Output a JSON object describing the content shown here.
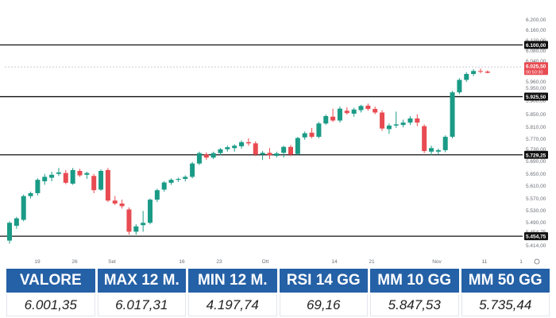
{
  "chart_data": {
    "type": "candlestick",
    "y_range": [
      5380,
      6230
    ],
    "y_ticks": [
      "6.200,00",
      "6.160,00",
      "6.120,00",
      "6.080,00",
      "6.040,00",
      "6.000,00",
      "5.960,00",
      "5.950,00",
      "5.900,00",
      "5.850,00",
      "5.810,00",
      "5.770,00",
      "5.730,00",
      "5.690,00",
      "5.650,00",
      "5.610,00",
      "5.570,00",
      "5.530,00",
      "5.490,00",
      "5.454,75",
      "5.414,00"
    ],
    "x_tick_labels": [
      "19",
      "26",
      "Set",
      "16",
      "23",
      "Ott",
      "14",
      "21",
      "Nov",
      "11",
      "1"
    ],
    "horizontal_levels": [
      {
        "value": 6100.0,
        "label": "6.100,00"
      },
      {
        "value": 5925.5,
        "label": "5.925,50"
      },
      {
        "value": 5729.25,
        "label": "5.729,25"
      },
      {
        "value": 5454.75,
        "label": "5.454,75"
      }
    ],
    "current_price": {
      "value": 6025.5,
      "label": "6.025,50",
      "sublabel": "00:50:30"
    },
    "colors": {
      "up": "#1a9b86",
      "down": "#e84b52",
      "price_tag": "#e84b52",
      "level_line": "#111111",
      "tag_bg": "#111111"
    },
    "candles": [
      {
        "o": 5440,
        "h": 5505,
        "l": 5430,
        "c": 5500
      },
      {
        "o": 5490,
        "h": 5520,
        "l": 5480,
        "c": 5515
      },
      {
        "o": 5510,
        "h": 5595,
        "l": 5505,
        "c": 5590
      },
      {
        "o": 5590,
        "h": 5605,
        "l": 5582,
        "c": 5600
      },
      {
        "o": 5600,
        "h": 5650,
        "l": 5592,
        "c": 5645
      },
      {
        "o": 5640,
        "h": 5665,
        "l": 5628,
        "c": 5655
      },
      {
        "o": 5652,
        "h": 5672,
        "l": 5640,
        "c": 5662
      },
      {
        "o": 5665,
        "h": 5685,
        "l": 5658,
        "c": 5670
      },
      {
        "o": 5668,
        "h": 5678,
        "l": 5630,
        "c": 5635
      },
      {
        "o": 5632,
        "h": 5685,
        "l": 5628,
        "c": 5678
      },
      {
        "o": 5675,
        "h": 5682,
        "l": 5655,
        "c": 5660
      },
      {
        "o": 5662,
        "h": 5672,
        "l": 5648,
        "c": 5668
      },
      {
        "o": 5658,
        "h": 5665,
        "l": 5600,
        "c": 5610
      },
      {
        "o": 5612,
        "h": 5680,
        "l": 5608,
        "c": 5675
      },
      {
        "o": 5678,
        "h": 5685,
        "l": 5570,
        "c": 5575
      },
      {
        "o": 5575,
        "h": 5590,
        "l": 5560,
        "c": 5565
      },
      {
        "o": 5565,
        "h": 5578,
        "l": 5548,
        "c": 5556
      },
      {
        "o": 5545,
        "h": 5552,
        "l": 5460,
        "c": 5470
      },
      {
        "o": 5470,
        "h": 5495,
        "l": 5460,
        "c": 5488
      },
      {
        "o": 5492,
        "h": 5540,
        "l": 5470,
        "c": 5500
      },
      {
        "o": 5500,
        "h": 5582,
        "l": 5495,
        "c": 5578
      },
      {
        "o": 5578,
        "h": 5615,
        "l": 5570,
        "c": 5610
      },
      {
        "o": 5612,
        "h": 5640,
        "l": 5605,
        "c": 5636
      },
      {
        "o": 5635,
        "h": 5650,
        "l": 5628,
        "c": 5645
      },
      {
        "o": 5645,
        "h": 5652,
        "l": 5638,
        "c": 5648
      },
      {
        "o": 5648,
        "h": 5660,
        "l": 5640,
        "c": 5655
      },
      {
        "o": 5655,
        "h": 5705,
        "l": 5650,
        "c": 5700
      },
      {
        "o": 5700,
        "h": 5740,
        "l": 5695,
        "c": 5735
      },
      {
        "o": 5730,
        "h": 5738,
        "l": 5712,
        "c": 5720
      },
      {
        "o": 5720,
        "h": 5740,
        "l": 5715,
        "c": 5735
      },
      {
        "o": 5735,
        "h": 5752,
        "l": 5728,
        "c": 5748
      },
      {
        "o": 5748,
        "h": 5760,
        "l": 5740,
        "c": 5755
      },
      {
        "o": 5752,
        "h": 5765,
        "l": 5740,
        "c": 5760
      },
      {
        "o": 5758,
        "h": 5778,
        "l": 5750,
        "c": 5772
      },
      {
        "o": 5772,
        "h": 5785,
        "l": 5760,
        "c": 5768
      },
      {
        "o": 5768,
        "h": 5775,
        "l": 5725,
        "c": 5730
      },
      {
        "o": 5730,
        "h": 5742,
        "l": 5712,
        "c": 5736
      },
      {
        "o": 5736,
        "h": 5752,
        "l": 5715,
        "c": 5728
      },
      {
        "o": 5726,
        "h": 5740,
        "l": 5720,
        "c": 5734
      },
      {
        "o": 5736,
        "h": 5760,
        "l": 5720,
        "c": 5756
      },
      {
        "o": 5756,
        "h": 5762,
        "l": 5725,
        "c": 5730
      },
      {
        "o": 5732,
        "h": 5790,
        "l": 5728,
        "c": 5786
      },
      {
        "o": 5788,
        "h": 5808,
        "l": 5780,
        "c": 5802
      },
      {
        "o": 5804,
        "h": 5820,
        "l": 5785,
        "c": 5790
      },
      {
        "o": 5790,
        "h": 5840,
        "l": 5785,
        "c": 5835
      },
      {
        "o": 5835,
        "h": 5865,
        "l": 5830,
        "c": 5860
      },
      {
        "o": 5858,
        "h": 5885,
        "l": 5840,
        "c": 5845
      },
      {
        "o": 5845,
        "h": 5892,
        "l": 5838,
        "c": 5885
      },
      {
        "o": 5878,
        "h": 5890,
        "l": 5865,
        "c": 5870
      },
      {
        "o": 5868,
        "h": 5888,
        "l": 5858,
        "c": 5882
      },
      {
        "o": 5880,
        "h": 5898,
        "l": 5872,
        "c": 5894
      },
      {
        "o": 5895,
        "h": 5902,
        "l": 5878,
        "c": 5884
      },
      {
        "o": 5884,
        "h": 5892,
        "l": 5866,
        "c": 5872
      },
      {
        "o": 5872,
        "h": 5880,
        "l": 5810,
        "c": 5818
      },
      {
        "o": 5816,
        "h": 5835,
        "l": 5800,
        "c": 5828
      },
      {
        "o": 5828,
        "h": 5875,
        "l": 5820,
        "c": 5832
      },
      {
        "o": 5830,
        "h": 5848,
        "l": 5822,
        "c": 5838
      },
      {
        "o": 5838,
        "h": 5860,
        "l": 5830,
        "c": 5852
      },
      {
        "o": 5852,
        "h": 5866,
        "l": 5826,
        "c": 5838
      },
      {
        "o": 5826,
        "h": 5832,
        "l": 5735,
        "c": 5742
      },
      {
        "o": 5740,
        "h": 5760,
        "l": 5728,
        "c": 5752
      },
      {
        "o": 5740,
        "h": 5750,
        "l": 5730,
        "c": 5745
      },
      {
        "o": 5745,
        "h": 5795,
        "l": 5738,
        "c": 5790
      },
      {
        "o": 5790,
        "h": 5945,
        "l": 5785,
        "c": 5940
      },
      {
        "o": 5940,
        "h": 5988,
        "l": 5934,
        "c": 5982
      },
      {
        "o": 5982,
        "h": 6008,
        "l": 5975,
        "c": 6002
      },
      {
        "o": 6002,
        "h": 6018,
        "l": 5995,
        "c": 6012
      },
      {
        "o": 6012,
        "h": 6020,
        "l": 6004,
        "c": 6010
      },
      {
        "o": 6010,
        "h": 6014,
        "l": 6004,
        "c": 6006
      }
    ]
  },
  "stats": {
    "headers": [
      "VALORE",
      "MAX 12 M.",
      "MIN 12 M.",
      "RSI 14 GG",
      "MM 10 GG",
      "MM 50 GG"
    ],
    "values": [
      "6.001,35",
      "6.017,31",
      "4.197,74",
      "69,16",
      "5.847,53",
      "5.735,44"
    ],
    "header_color": "#2561a6"
  },
  "controls": {
    "axis_toggle_icon": "settings-icon"
  }
}
